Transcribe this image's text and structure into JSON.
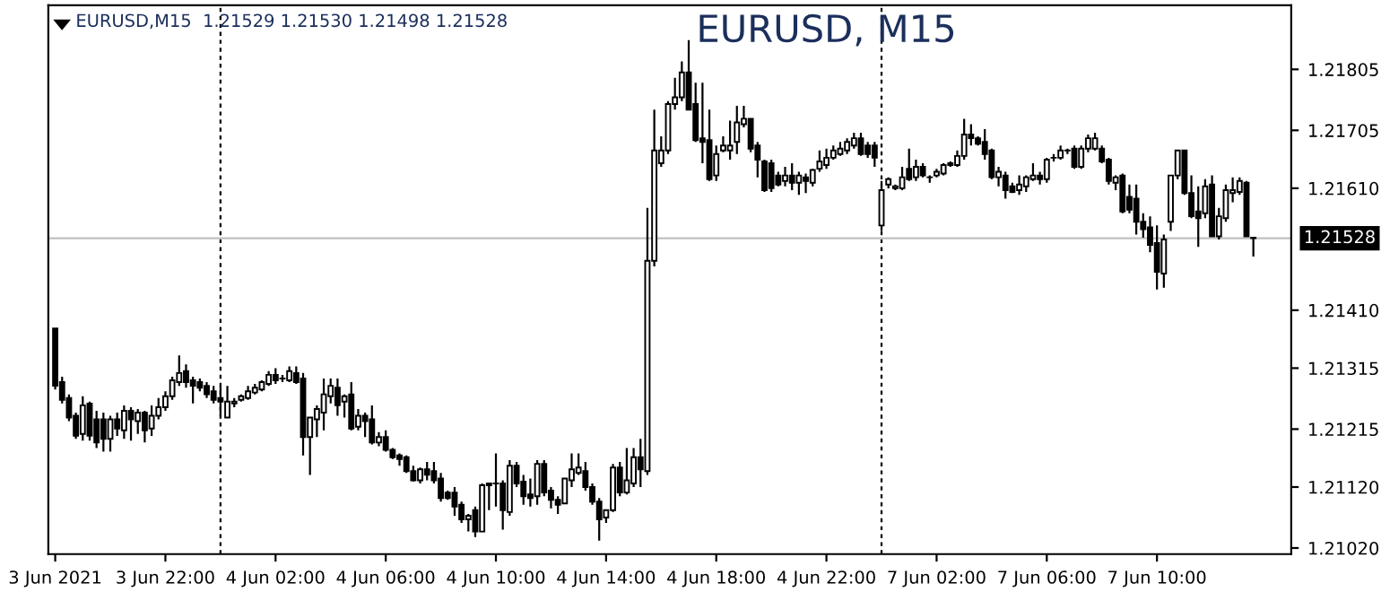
{
  "chart_data": {
    "type": "candlestick",
    "title": "EURUSD, M15",
    "annotations": [
      "EURUSD,M15  1.21529 1.21530 1.21498 1.21528"
    ],
    "categories": [
      "3 Jun 2021",
      null,
      null,
      null,
      null,
      null,
      null,
      null,
      null,
      null,
      null,
      null,
      null,
      null,
      null,
      null,
      "3 Jun 22:00",
      null,
      null,
      null,
      null,
      null,
      null,
      null,
      null,
      null,
      null,
      null,
      null,
      null,
      null,
      null,
      "4 Jun 02:00",
      null,
      null,
      null,
      null,
      null,
      null,
      null,
      null,
      null,
      null,
      null,
      null,
      null,
      null,
      null,
      "4 Jun 06:00",
      null,
      null,
      null,
      null,
      null,
      null,
      null,
      null,
      null,
      null,
      null,
      null,
      null,
      null,
      null,
      "4 Jun 10:00",
      null,
      null,
      null,
      null,
      null,
      null,
      null,
      null,
      null,
      null,
      null,
      null,
      null,
      null,
      null,
      "4 Jun 14:00",
      null,
      null,
      null,
      null,
      null,
      null,
      null,
      null,
      null,
      null,
      null,
      null,
      null,
      null,
      null,
      "4 Jun 18:00",
      null,
      null,
      null,
      null,
      null,
      null,
      null,
      null,
      null,
      null,
      null,
      null,
      null,
      null,
      null,
      "4 Jun 22:00",
      null,
      null,
      null,
      null,
      null,
      null,
      null,
      null,
      null,
      null,
      null,
      null,
      null,
      null,
      null,
      "7 Jun 02:00",
      null,
      null,
      null,
      null,
      null,
      null,
      null,
      null,
      null,
      null,
      null,
      null,
      null,
      null,
      null,
      "7 Jun 06:00",
      null,
      null,
      null,
      null,
      null,
      null,
      null,
      null,
      null,
      null,
      null,
      null,
      null,
      null,
      null,
      "7 Jun 10:00",
      null,
      null,
      null,
      null,
      null,
      null,
      null,
      null,
      null,
      null,
      null,
      null,
      null,
      null
    ],
    "ohlc": [
      [
        1.2138,
        1.2138,
        1.2128,
        1.21286
      ],
      [
        1.21292,
        1.21301,
        1.21257,
        1.21263
      ],
      [
        1.21266,
        1.21272,
        1.21228,
        1.21234
      ],
      [
        1.21237,
        1.21242,
        1.21199,
        1.21204
      ],
      [
        1.21207,
        1.21269,
        1.21196,
        1.21254
      ],
      [
        1.21257,
        1.2126,
        1.21196,
        1.21204
      ],
      [
        1.21231,
        1.21245,
        1.21184,
        1.21193
      ],
      [
        1.21231,
        1.21242,
        1.21178,
        1.21199
      ],
      [
        1.21199,
        1.21237,
        1.21178,
        1.21231
      ],
      [
        1.21231,
        1.21242,
        1.21204,
        1.21216
      ],
      [
        1.21213,
        1.21254,
        1.21199,
        1.21245
      ],
      [
        1.21245,
        1.21251,
        1.21196,
        1.21231
      ],
      [
        1.21228,
        1.21248,
        1.21207,
        1.21242
      ],
      [
        1.21242,
        1.21245,
        1.21193,
        1.21213
      ],
      [
        1.21216,
        1.21254,
        1.21204,
        1.21237
      ],
      [
        1.21237,
        1.21266,
        1.21231,
        1.21251
      ],
      [
        1.21251,
        1.21277,
        1.21245,
        1.21269
      ],
      [
        1.21269,
        1.21301,
        1.21263,
        1.21295
      ],
      [
        1.21292,
        1.21336,
        1.21286,
        1.21307
      ],
      [
        1.2131,
        1.21321,
        1.21283,
        1.21292
      ],
      [
        1.21295,
        1.21301,
        1.21257,
        1.21286
      ],
      [
        1.21292,
        1.21298,
        1.21277,
        1.21283
      ],
      [
        1.21286,
        1.21292,
        1.21266,
        1.21272
      ],
      [
        1.21277,
        1.21286,
        1.21257,
        1.21263
      ],
      [
        1.21266,
        1.21286,
        1.21237,
        1.2126
      ],
      [
        1.21234,
        1.21286,
        1.21234,
        1.2126
      ],
      [
        1.21257,
        1.21266,
        1.21251,
        1.2126
      ],
      [
        1.21263,
        1.21272,
        1.2126,
        1.21269
      ],
      [
        1.21266,
        1.21286,
        1.21263,
        1.21277
      ],
      [
        1.21275,
        1.21289,
        1.21272,
        1.21283
      ],
      [
        1.2128,
        1.21295,
        1.21277,
        1.21292
      ],
      [
        1.21289,
        1.2131,
        1.21286,
        1.21304
      ],
      [
        1.21304,
        1.21315,
        1.21289,
        1.21295
      ],
      [
        1.21298,
        1.21304,
        1.21292,
        1.21298
      ],
      [
        1.21295,
        1.21318,
        1.21292,
        1.2131
      ],
      [
        1.21307,
        1.21318,
        1.21289,
        1.21292
      ],
      [
        1.21298,
        1.21307,
        1.21172,
        1.21202
      ],
      [
        1.21202,
        1.21234,
        1.2114,
        1.21234
      ],
      [
        1.21231,
        1.21254,
        1.21202,
        1.21248
      ],
      [
        1.21242,
        1.21298,
        1.21213,
        1.21272
      ],
      [
        1.21269,
        1.21298,
        1.21257,
        1.21286
      ],
      [
        1.21283,
        1.21298,
        1.21237,
        1.21254
      ],
      [
        1.2126,
        1.21272,
        1.21234,
        1.21269
      ],
      [
        1.21272,
        1.21292,
        1.21213,
        1.21216
      ],
      [
        1.21219,
        1.21248,
        1.21213,
        1.21237
      ],
      [
        1.21237,
        1.21242,
        1.21202,
        1.21228
      ],
      [
        1.21231,
        1.21254,
        1.2119,
        1.21193
      ],
      [
        1.21193,
        1.2121,
        1.21187,
        1.21202
      ],
      [
        1.21202,
        1.21213,
        1.21178,
        1.21181
      ],
      [
        1.21181,
        1.21184,
        1.21166,
        1.21169
      ],
      [
        1.21172,
        1.21175,
        1.21155,
        1.21166
      ],
      [
        1.21169,
        1.21172,
        1.21143,
        1.21146
      ],
      [
        1.21146,
        1.21155,
        1.21129,
        1.21131
      ],
      [
        1.21131,
        1.21152,
        1.21126,
        1.21149
      ],
      [
        1.21149,
        1.21161,
        1.21131,
        1.2114
      ],
      [
        1.21146,
        1.21161,
        1.21126,
        1.21131
      ],
      [
        1.21134,
        1.21143,
        1.21096,
        1.21102
      ],
      [
        1.21111,
        1.21114,
        1.21099,
        1.21102
      ],
      [
        1.21111,
        1.2112,
        1.21073,
        1.21088
      ],
      [
        1.21091,
        1.21096,
        1.21061,
        1.21067
      ],
      [
        1.21067,
        1.21076,
        1.21047,
        1.21073
      ],
      [
        1.21082,
        1.21088,
        1.21038,
        1.21047
      ],
      [
        1.21047,
        1.21126,
        1.21047,
        1.21123
      ],
      [
        1.21123,
        1.21126,
        1.21082,
        1.21126
      ],
      [
        1.21126,
        1.21175,
        1.21088,
        1.21126
      ],
      [
        1.21126,
        1.21131,
        1.2105,
        1.21082
      ],
      [
        1.21079,
        1.21164,
        1.21073,
        1.21155
      ],
      [
        1.21155,
        1.21161,
        1.2112,
        1.21126
      ],
      [
        1.21129,
        1.2114,
        1.21091,
        1.21105
      ],
      [
        1.21108,
        1.21134,
        1.21088,
        1.21102
      ],
      [
        1.21105,
        1.21164,
        1.21091,
        1.21158
      ],
      [
        1.21158,
        1.21164,
        1.21105,
        1.21111
      ],
      [
        1.21114,
        1.2112,
        1.21085,
        1.21099
      ],
      [
        1.21099,
        1.21105,
        1.21076,
        1.21091
      ],
      [
        1.21093,
        1.21134,
        1.21093,
        1.21134
      ],
      [
        1.21131,
        1.21175,
        1.2112,
        1.21149
      ],
      [
        1.21143,
        1.21175,
        1.2114,
        1.21152
      ],
      [
        1.21146,
        1.21161,
        1.21114,
        1.2112
      ],
      [
        1.2112,
        1.21126,
        1.21091,
        1.21096
      ],
      [
        1.21096,
        1.21102,
        1.21032,
        1.21067
      ],
      [
        1.2107,
        1.21082,
        1.21061,
        1.21082
      ],
      [
        1.21082,
        1.21158,
        1.21079,
        1.21152
      ],
      [
        1.21152,
        1.21161,
        1.21105,
        1.21111
      ],
      [
        1.21111,
        1.21184,
        1.21108,
        1.21131
      ],
      [
        1.21126,
        1.21184,
        1.2112,
        1.21169
      ],
      [
        1.21169,
        1.21199,
        1.2112,
        1.21149
      ],
      [
        1.21146,
        1.21578,
        1.2114,
        1.21491
      ],
      [
        1.21491,
        1.21739,
        1.21482,
        1.21672
      ],
      [
        1.21651,
        1.21695,
        1.21645,
        1.21672
      ],
      [
        1.21672,
        1.21753,
        1.21666,
        1.21748
      ],
      [
        1.21748,
        1.21791,
        1.21739,
        1.21759
      ],
      [
        1.21759,
        1.21818,
        1.21753,
        1.218
      ],
      [
        1.218,
        1.21853,
        1.21739,
        1.21739
      ],
      [
        1.21748,
        1.21783,
        1.21686,
        1.21689
      ],
      [
        1.21692,
        1.21783,
        1.21651,
        1.21686
      ],
      [
        1.21689,
        1.21739,
        1.21622,
        1.21625
      ],
      [
        1.21631,
        1.2168,
        1.21622,
        1.21666
      ],
      [
        1.21672,
        1.21695,
        1.21669,
        1.2168
      ],
      [
        1.21672,
        1.21721,
        1.21657,
        1.2168
      ],
      [
        1.21686,
        1.21745,
        1.21666,
        1.21718
      ],
      [
        1.21715,
        1.21745,
        1.2171,
        1.21724
      ],
      [
        1.21724,
        1.21724,
        1.21669,
        1.21675
      ],
      [
        1.2168,
        1.21686,
        1.21628,
        1.21657
      ],
      [
        1.21654,
        1.21657,
        1.21604,
        1.21607
      ],
      [
        1.21651,
        1.21657,
        1.21604,
        1.2161
      ],
      [
        1.21631,
        1.21637,
        1.21613,
        1.21616
      ],
      [
        1.21622,
        1.21645,
        1.21613,
        1.21631
      ],
      [
        1.21631,
        1.21651,
        1.21607,
        1.21619
      ],
      [
        1.21619,
        1.21637,
        1.21599,
        1.21631
      ],
      [
        1.21628,
        1.21634,
        1.21602,
        1.21622
      ],
      [
        1.21619,
        1.21642,
        1.21613,
        1.2164
      ],
      [
        1.21642,
        1.21672,
        1.21637,
        1.21654
      ],
      [
        1.21648,
        1.21675,
        1.21642,
        1.2166
      ],
      [
        1.2166,
        1.2168,
        1.21657,
        1.21672
      ],
      [
        1.21666,
        1.21686,
        1.21663,
        1.21675
      ],
      [
        1.21672,
        1.21692,
        1.21666,
        1.21686
      ],
      [
        1.2168,
        1.21701,
        1.21675,
        1.21692
      ],
      [
        1.21692,
        1.21701,
        1.21663,
        1.21666
      ],
      [
        1.2168,
        1.21686,
        1.2166,
        1.21666
      ],
      [
        1.2168,
        1.21686,
        1.21645,
        1.2166
      ],
      [
        1.21549,
        1.21622,
        1.2154,
        1.21607
      ],
      [
        1.21616,
        1.21628,
        1.2161,
        1.21625
      ],
      [
        1.2161,
        1.21616,
        1.21607,
        1.21613
      ],
      [
        1.2161,
        1.21645,
        1.21607,
        1.21628
      ],
      [
        1.21642,
        1.21675,
        1.21622,
        1.21625
      ],
      [
        1.21628,
        1.21657,
        1.21622,
        1.21645
      ],
      [
        1.21645,
        1.21651,
        1.21628,
        1.21631
      ],
      [
        1.21628,
        1.21631,
        1.21619,
        1.21628
      ],
      [
        1.21631,
        1.21642,
        1.21628,
        1.21637
      ],
      [
        1.21634,
        1.21651,
        1.21631,
        1.21648
      ],
      [
        1.21651,
        1.21654,
        1.21645,
        1.21648
      ],
      [
        1.21648,
        1.21672,
        1.21645,
        1.21663
      ],
      [
        1.21663,
        1.21724,
        1.21657,
        1.21698
      ],
      [
        1.21698,
        1.21715,
        1.2168,
        1.21692
      ],
      [
        1.21692,
        1.21695,
        1.2168,
        1.21683
      ],
      [
        1.21686,
        1.21707,
        1.21657,
        1.21666
      ],
      [
        1.21672,
        1.21675,
        1.21625,
        1.21628
      ],
      [
        1.21628,
        1.21645,
        1.21613,
        1.21637
      ],
      [
        1.21631,
        1.21637,
        1.21593,
        1.21607
      ],
      [
        1.21613,
        1.21619,
        1.21602,
        1.21604
      ],
      [
        1.21607,
        1.21631,
        1.21599,
        1.21616
      ],
      [
        1.21613,
        1.21631,
        1.21604,
        1.21628
      ],
      [
        1.21625,
        1.21651,
        1.21622,
        1.21631
      ],
      [
        1.21631,
        1.21637,
        1.21616,
        1.21625
      ],
      [
        1.21625,
        1.2166,
        1.21619,
        1.21657
      ],
      [
        1.2166,
        1.21666,
        1.21654,
        1.2166
      ],
      [
        1.2166,
        1.2168,
        1.21657,
        1.21672
      ],
      [
        1.21672,
        1.21675,
        1.21666,
        1.21672
      ],
      [
        1.21675,
        1.2168,
        1.21642,
        1.21645
      ],
      [
        1.21645,
        1.2168,
        1.21642,
        1.21675
      ],
      [
        1.21675,
        1.21698,
        1.21669,
        1.21692
      ],
      [
        1.21675,
        1.21701,
        1.21672,
        1.21692
      ],
      [
        1.21675,
        1.2168,
        1.21651,
        1.21654
      ],
      [
        1.21657,
        1.2166,
        1.21616,
        1.21622
      ],
      [
        1.21619,
        1.21631,
        1.21607,
        1.21628
      ],
      [
        1.21631,
        1.21634,
        1.21569,
        1.21572
      ],
      [
        1.21596,
        1.21616,
        1.21569,
        1.21575
      ],
      [
        1.21593,
        1.21616,
        1.21534,
        1.21555
      ],
      [
        1.21555,
        1.21569,
        1.21529,
        1.21543
      ],
      [
        1.21546,
        1.21564,
        1.21505,
        1.21517
      ],
      [
        1.2152,
        1.21549,
        1.21444,
        1.21473
      ],
      [
        1.2147,
        1.21534,
        1.21447,
        1.21526
      ],
      [
        1.21555,
        1.21631,
        1.2154,
        1.21631
      ],
      [
        1.21631,
        1.21672,
        1.21625,
        1.21672
      ],
      [
        1.21672,
        1.21672,
        1.21599,
        1.21602
      ],
      [
        1.21602,
        1.21631,
        1.21561,
        1.21564
      ],
      [
        1.21572,
        1.21613,
        1.21514,
        1.21561
      ],
      [
        1.21569,
        1.21625,
        1.21561,
        1.21613
      ],
      [
        1.21616,
        1.21631,
        1.21531,
        1.21531
      ],
      [
        1.21531,
        1.21578,
        1.21526,
        1.21564
      ],
      [
        1.21561,
        1.21616,
        1.21555,
        1.21607
      ],
      [
        1.21602,
        1.21628,
        1.21587,
        1.21607
      ],
      [
        1.21604,
        1.21628,
        1.21599,
        1.21622
      ],
      [
        1.21619,
        1.21622,
        1.21531,
        1.21531
      ],
      [
        1.21529,
        1.2153,
        1.21498,
        1.21528
      ]
    ],
    "ylim": [
      1.2101,
      1.2191
    ],
    "yticks": [
      {
        "value": 1.2102,
        "label": "1.21020"
      },
      {
        "value": 1.2112,
        "label": "1.21120"
      },
      1.21215,
      1.21315,
      {
        "value": 1.2141,
        "label": "1.21410"
      },
      {
        "value": 1.2161,
        "label": "1.21610"
      },
      1.21705,
      1.21805
    ],
    "ref_lines": [
      {
        "axis": "y",
        "value": 1.21528,
        "label": "1.21528",
        "color": "#c0c0c0"
      }
    ]
  }
}
